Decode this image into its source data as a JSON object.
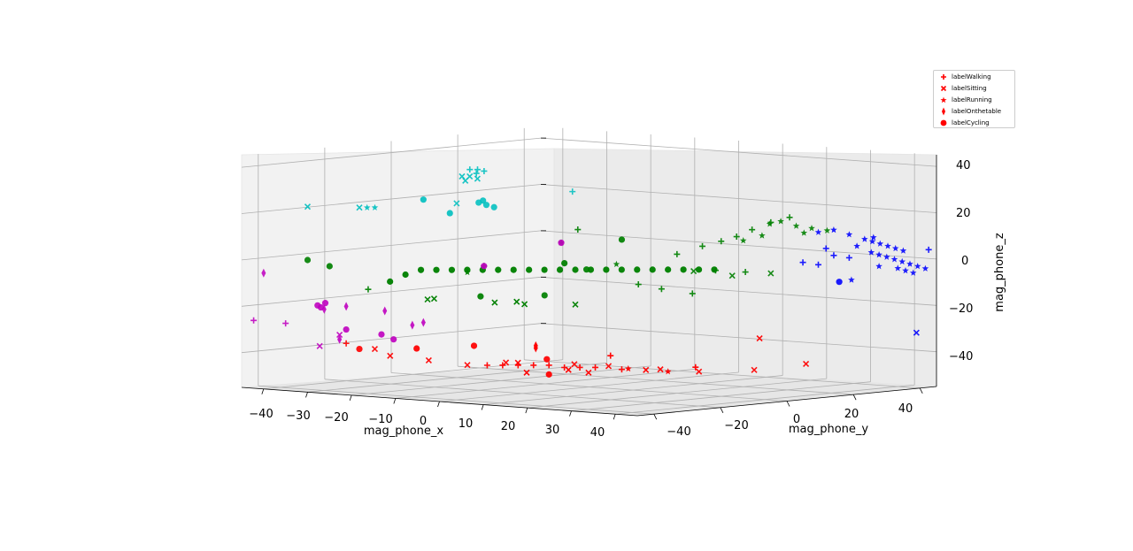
{
  "chart_data": {
    "type": "scatter",
    "projection": "3d",
    "title": "",
    "xlabel": "mag_phone_x",
    "ylabel": "mag_phone_y",
    "zlabel": "mag_phone_z",
    "xlim": [
      -45,
      45
    ],
    "ylim": [
      -45,
      45
    ],
    "zlim": [
      -55,
      45
    ],
    "x_ticks": [
      "−40",
      "−30",
      "−20",
      "−10",
      "0",
      "10",
      "20",
      "30",
      "40"
    ],
    "y_ticks": [
      "−40",
      "−20",
      "0",
      "20",
      "40"
    ],
    "z_ticks": [
      "40",
      "20",
      "0",
      "−20",
      "−40"
    ],
    "grid": true,
    "legend_position": "top-right",
    "legend": [
      {
        "label": "labelWalking",
        "marker": "plus"
      },
      {
        "label": "labelSitting",
        "marker": "x"
      },
      {
        "label": "labelRunning",
        "marker": "star"
      },
      {
        "label": "labelOnthetable",
        "marker": "thin_diamond"
      },
      {
        "label": "labelCycling",
        "marker": "circle"
      }
    ],
    "user_colors": {
      "user_1": "#ff0000",
      "user_2": "#008000",
      "user_3": "#0000ff",
      "user_4": "#00bfbf",
      "user_5": "#bf00bf"
    },
    "groups": [
      {
        "user": "user_1",
        "activity": "labelSitting",
        "points": [
          [
            -10,
            -35,
            -40
          ],
          [
            -5,
            -30,
            -42
          ],
          [
            0,
            -25,
            -41
          ],
          [
            5,
            -28,
            -40
          ],
          [
            10,
            -32,
            -43
          ],
          [
            15,
            -20,
            -44
          ],
          [
            -15,
            -40,
            -38
          ],
          [
            8,
            -15,
            -42
          ],
          [
            12,
            -10,
            -43
          ],
          [
            20,
            -5,
            -44
          ],
          [
            25,
            0,
            -45
          ],
          [
            30,
            10,
            -45
          ],
          [
            18,
            -30,
            -41
          ],
          [
            35,
            5,
            -30
          ],
          [
            38,
            15,
            -42
          ],
          [
            -20,
            -38,
            -36
          ],
          [
            22,
            -12,
            -43
          ]
        ]
      },
      {
        "user": "user_1",
        "activity": "labelWalking",
        "points": [
          [
            -2,
            -28,
            -42
          ],
          [
            0,
            -26,
            -42
          ],
          [
            2,
            -24,
            -42
          ],
          [
            4,
            -22,
            -42
          ],
          [
            6,
            -20,
            -42
          ],
          [
            8,
            -18,
            -43
          ],
          [
            10,
            -16,
            -43
          ],
          [
            12,
            -14,
            -43
          ],
          [
            -25,
            -40,
            -34
          ],
          [
            15,
            -10,
            -44
          ],
          [
            28,
            -5,
            -42
          ],
          [
            20,
            -20,
            -36
          ]
        ]
      },
      {
        "user": "user_1",
        "activity": "labelRunning",
        "points": [
          [
            18,
            -12,
            -43
          ],
          [
            24,
            -8,
            -44
          ]
        ]
      },
      {
        "user": "user_1",
        "activity": "labelOnthetable",
        "points": [
          [
            3,
            -20,
            -35
          ],
          [
            3,
            -20,
            -34
          ]
        ]
      },
      {
        "user": "user_1",
        "activity": "labelCycling",
        "points": [
          [
            4,
            -18,
            -40
          ],
          [
            6,
            -20,
            -46
          ],
          [
            -12,
            -36,
            -35
          ],
          [
            -5,
            -28,
            -34
          ],
          [
            -22,
            -40,
            -36
          ]
        ]
      },
      {
        "user": "user_2",
        "activity": "labelSitting",
        "points": [
          [
            10,
            -35,
            -12
          ],
          [
            12,
            -20,
            -15
          ],
          [
            20,
            5,
            -3
          ],
          [
            25,
            10,
            -5
          ],
          [
            30,
            15,
            -4
          ],
          [
            8,
            -30,
            -14
          ],
          [
            5,
            -35,
            -13
          ],
          [
            -5,
            -40,
            -12
          ],
          [
            -8,
            -38,
            -13
          ]
        ]
      },
      {
        "user": "user_2",
        "activity": "labelWalking",
        "points": [
          [
            20,
            0,
            5
          ],
          [
            22,
            5,
            8
          ],
          [
            24,
            8,
            10
          ],
          [
            26,
            10,
            12
          ],
          [
            28,
            12,
            15
          ],
          [
            30,
            15,
            18
          ],
          [
            32,
            18,
            20
          ],
          [
            15,
            -5,
            -8
          ],
          [
            18,
            -2,
            -10
          ],
          [
            22,
            2,
            -12
          ],
          [
            -20,
            -40,
            -10
          ],
          [
            -5,
            -25,
            0
          ],
          [
            28,
            10,
            -3
          ],
          [
            25,
            5,
            -2
          ],
          [
            5,
            -10,
            15
          ]
        ]
      },
      {
        "user": "user_2",
        "activity": "labelRunning",
        "points": [
          [
            30,
            18,
            18
          ],
          [
            32,
            20,
            16
          ],
          [
            34,
            22,
            15
          ],
          [
            36,
            24,
            14
          ],
          [
            28,
            15,
            12
          ],
          [
            26,
            12,
            10
          ],
          [
            29,
            16,
            17
          ],
          [
            33,
            21,
            13
          ],
          [
            5,
            -15,
            10
          ],
          [
            -5,
            -30,
            -2
          ],
          [
            10,
            -5,
            0
          ]
        ]
      },
      {
        "user": "user_2",
        "activity": "labelCycling",
        "points": [
          [
            -8,
            -40,
            0
          ],
          [
            -6,
            -38,
            0
          ],
          [
            -4,
            -36,
            0
          ],
          [
            -2,
            -34,
            0
          ],
          [
            0,
            -32,
            0
          ],
          [
            2,
            -30,
            0
          ],
          [
            4,
            -28,
            0
          ],
          [
            6,
            -26,
            0
          ],
          [
            8,
            -24,
            0
          ],
          [
            10,
            -22,
            0
          ],
          [
            12,
            -20,
            0
          ],
          [
            14,
            -18,
            0
          ],
          [
            16,
            -16,
            0
          ],
          [
            18,
            -14,
            0
          ],
          [
            20,
            -12,
            0
          ],
          [
            22,
            -10,
            0
          ],
          [
            24,
            -8,
            0
          ],
          [
            26,
            -6,
            0
          ],
          [
            28,
            -4,
            0
          ],
          [
            30,
            -2,
            0
          ],
          [
            -10,
            -42,
            -2
          ],
          [
            -12,
            -44,
            -5
          ],
          [
            -25,
            -45,
            0
          ],
          [
            -30,
            -45,
            2
          ],
          [
            15,
            -10,
            12
          ],
          [
            5,
            -20,
            -12
          ],
          [
            -2,
            -30,
            -12
          ],
          [
            8,
            -18,
            2
          ],
          [
            10,
            -14,
            -1
          ]
        ]
      },
      {
        "user": "user_3",
        "activity": "labelRunning",
        "points": [
          [
            40,
            30,
            10
          ],
          [
            41,
            31,
            9
          ],
          [
            42,
            32,
            8
          ],
          [
            43,
            33,
            7
          ],
          [
            44,
            34,
            6
          ],
          [
            45,
            35,
            5
          ],
          [
            40,
            32,
            4
          ],
          [
            41,
            33,
            3
          ],
          [
            42,
            34,
            2
          ],
          [
            43,
            35,
            1
          ],
          [
            44,
            36,
            0
          ],
          [
            45,
            37,
            -1
          ],
          [
            46,
            38,
            -2
          ],
          [
            47,
            39,
            -3
          ],
          [
            44,
            37,
            -4
          ],
          [
            45,
            38,
            -5
          ],
          [
            38,
            28,
            12
          ],
          [
            36,
            26,
            14
          ],
          [
            34,
            24,
            13
          ],
          [
            42,
            30,
            11
          ],
          [
            39,
            29,
            7
          ],
          [
            41,
            33,
            -2
          ],
          [
            43,
            36,
            -3
          ],
          [
            37,
            30,
            -8
          ]
        ]
      },
      {
        "user": "user_3",
        "activity": "labelWalking",
        "points": [
          [
            35,
            25,
            6
          ],
          [
            36,
            26,
            3
          ],
          [
            38,
            28,
            2
          ],
          [
            47,
            40,
            5
          ],
          [
            32,
            22,
            0
          ],
          [
            34,
            24,
            -1
          ]
        ]
      },
      {
        "user": "user_3",
        "activity": "labelSitting",
        "points": [
          [
            48,
            35,
            -30
          ]
        ]
      },
      {
        "user": "user_3",
        "activity": "labelCycling",
        "points": [
          [
            38,
            25,
            -8
          ]
        ]
      },
      {
        "user": "user_4",
        "activity": "labelSitting",
        "points": [
          [
            -10,
            -25,
            38
          ],
          [
            -9,
            -24,
            38
          ],
          [
            -8,
            -23,
            37
          ],
          [
            -10,
            -24,
            36
          ],
          [
            -30,
            -45,
            25
          ],
          [
            -22,
            -40,
            25
          ],
          [
            -15,
            -20,
            25
          ]
        ]
      },
      {
        "user": "user_4",
        "activity": "labelWalking",
        "points": [
          [
            -12,
            -20,
            40
          ],
          [
            -11,
            -19,
            40
          ],
          [
            -9,
            -22,
            39
          ],
          [
            -8,
            -21,
            40
          ],
          [
            0,
            -5,
            30
          ]
        ]
      },
      {
        "user": "user_4",
        "activity": "labelRunning",
        "points": [
          [
            -21,
            -39,
            25
          ],
          [
            -20,
            -38,
            25
          ]
        ]
      },
      {
        "user": "user_4",
        "activity": "labelCycling",
        "points": [
          [
            -15,
            -30,
            28
          ],
          [
            -10,
            -20,
            26
          ],
          [
            -9,
            -19,
            25
          ],
          [
            -8,
            -18,
            24
          ],
          [
            -9,
            -20,
            27
          ],
          [
            -12,
            -26,
            22
          ]
        ]
      },
      {
        "user": "user_5",
        "activity": "labelOnthetable",
        "points": [
          [
            -40,
            -45,
            -5
          ],
          [
            -30,
            -40,
            -20
          ],
          [
            -25,
            -40,
            -18
          ],
          [
            -20,
            -35,
            -20
          ],
          [
            -15,
            -30,
            -25
          ],
          [
            -16,
            -32,
            -26
          ],
          [
            -25,
            -42,
            -32
          ]
        ]
      },
      {
        "user": "user_5",
        "activity": "labelCycling",
        "points": [
          [
            -30,
            -42,
            -18
          ],
          [
            -29,
            -41,
            -17
          ],
          [
            -30,
            -41,
            -19
          ],
          [
            -25,
            -40,
            -28
          ],
          [
            -18,
            -35,
            -32
          ],
          [
            -20,
            -36,
            -30
          ],
          [
            5,
            -15,
            10
          ],
          [
            -5,
            -25,
            0
          ]
        ]
      },
      {
        "user": "user_5",
        "activity": "labelWalking",
        "points": [
          [
            -40,
            -48,
            -25
          ],
          [
            -35,
            -45,
            -26
          ]
        ]
      },
      {
        "user": "user_5",
        "activity": "labelSitting",
        "points": [
          [
            -28,
            -44,
            -35
          ],
          [
            -25,
            -42,
            -30
          ]
        ]
      }
    ]
  }
}
